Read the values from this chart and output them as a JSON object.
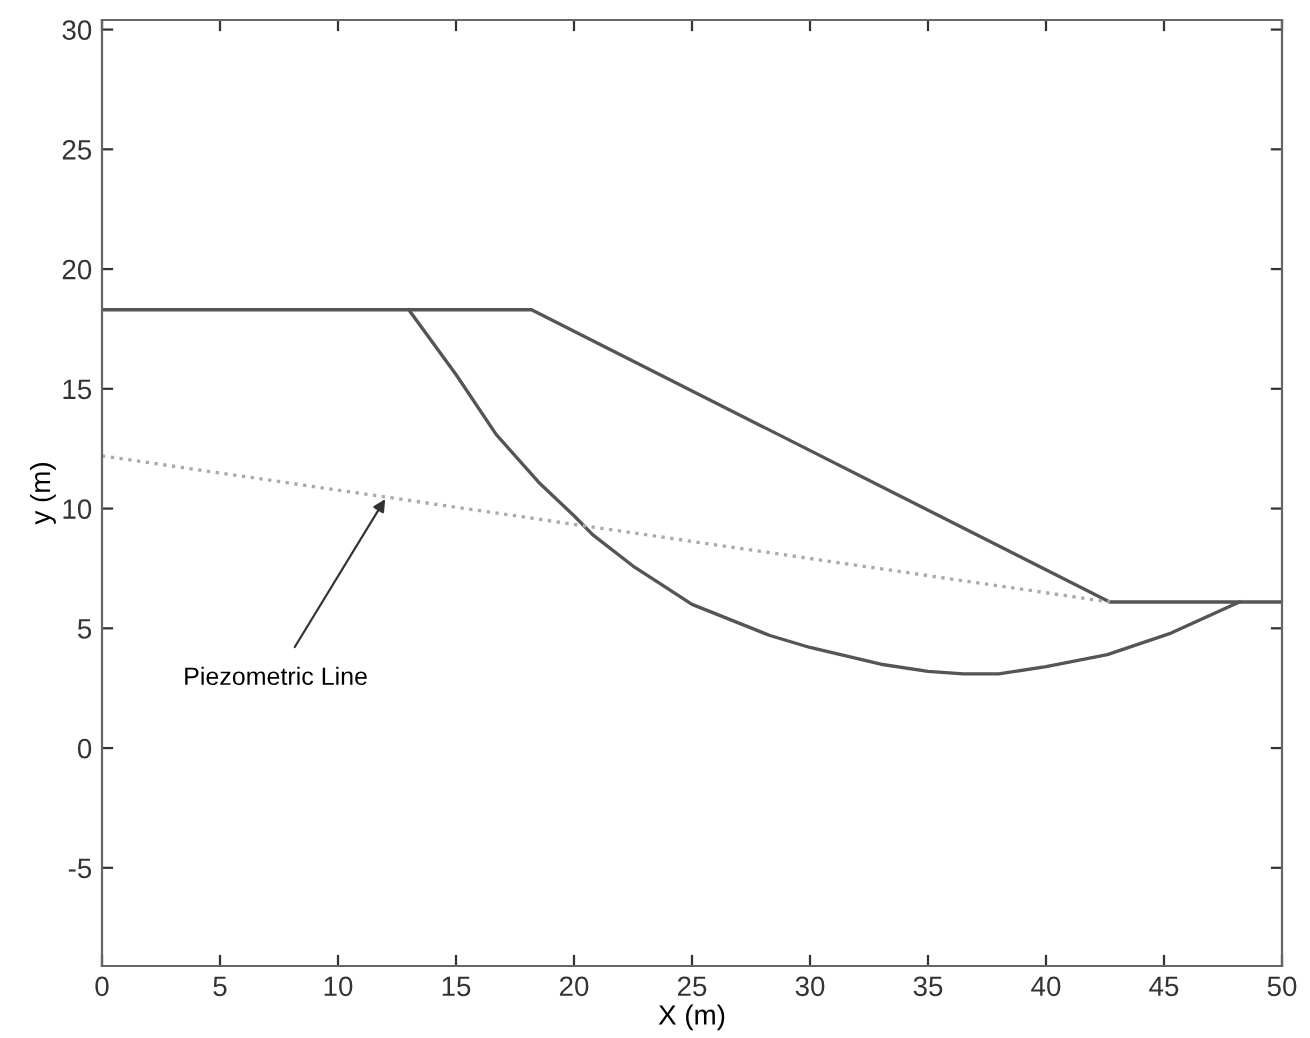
{
  "chart_data": {
    "type": "line",
    "xlabel": "X (m)",
    "ylabel": "y (m)",
    "xlim": [
      0,
      50
    ],
    "ylim": [
      -9.1,
      30.4
    ],
    "xticks": [
      0,
      5,
      10,
      15,
      20,
      25,
      30,
      35,
      40,
      45,
      50
    ],
    "yticks": [
      -5,
      0,
      5,
      10,
      15,
      20,
      25,
      30
    ],
    "grid": false,
    "legend": false,
    "marker": "none",
    "series": [
      {
        "color": "#555555",
        "line_style": "solid",
        "x": [
          0,
          18.2,
          42.7,
          50
        ],
        "values": [
          18.3,
          18.3,
          6.1,
          6.1
        ]
      },
      {
        "color": "#555555",
        "line_style": "solid",
        "x": [
          13,
          15,
          16.7,
          18.5,
          20,
          20.8,
          22.5,
          23.6,
          25,
          28.3,
          30,
          33,
          35,
          36.5,
          38,
          40,
          42.6,
          45.3,
          48.2
        ],
        "values": [
          18.3,
          15.6,
          13.1,
          11.1,
          9.7,
          8.9,
          7.6,
          6.9,
          6.0,
          4.7,
          4.2,
          3.5,
          3.2,
          3.1,
          3.1,
          3.4,
          3.9,
          4.8,
          6.1
        ]
      },
      {
        "color": "#aaaaaa",
        "line_style": "dotted",
        "x": [
          0,
          42.7
        ],
        "values": [
          12.2,
          6.1
        ]
      }
    ],
    "annotations": [
      {
        "text": "Piezometric Line",
        "x": 12,
        "y": 10.4
      }
    ]
  }
}
